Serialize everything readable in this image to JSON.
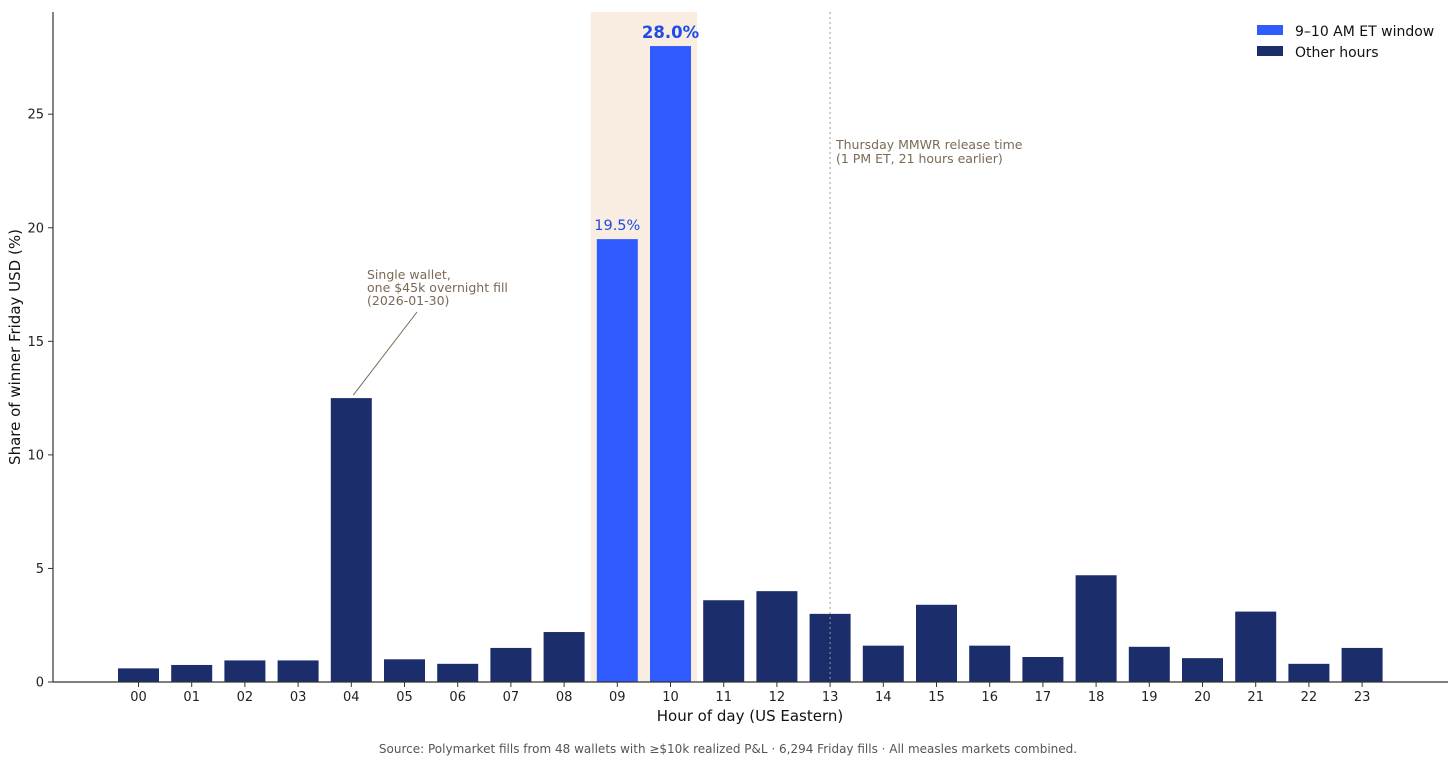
{
  "chart_data": {
    "type": "bar",
    "title": "",
    "xlabel": "Hour of day (US Eastern)",
    "ylabel": "Share of winner Friday USD (%)",
    "ylim": [
      0,
      29.5
    ],
    "yticks": [
      0,
      5,
      10,
      15,
      20,
      25
    ],
    "categories": [
      "00",
      "01",
      "02",
      "03",
      "04",
      "05",
      "06",
      "07",
      "08",
      "09",
      "10",
      "11",
      "12",
      "13",
      "14",
      "15",
      "16",
      "17",
      "18",
      "19",
      "20",
      "21",
      "22",
      "23"
    ],
    "values": [
      0.6,
      0.75,
      0.95,
      0.95,
      12.5,
      1.0,
      0.8,
      1.5,
      2.2,
      19.5,
      28.0,
      3.6,
      4.0,
      3.0,
      1.6,
      3.4,
      1.6,
      1.1,
      4.7,
      1.55,
      1.05,
      3.1,
      0.8,
      1.5
    ],
    "highlight_categories": [
      "09",
      "10"
    ],
    "highlight_labels": {
      "09": "19.5%",
      "10": "28.0%"
    },
    "legend": {
      "position": "top-right",
      "entries": [
        {
          "label": "9–10 AM ET window",
          "color": "#2f5bff"
        },
        {
          "label": "Other hours",
          "color": "#1b2d6b"
        }
      ]
    },
    "annotations": {
      "single_wallet": {
        "lines": [
          "Single wallet,",
          "one $45k overnight fill",
          "(2026-01-30)"
        ],
        "target_category": "04"
      },
      "mmwr": {
        "lines": [
          "Thursday MMWR release time",
          "(1 PM ET, 21 hours earlier)"
        ],
        "line_at_category": "13"
      }
    },
    "source": "Source: Polymarket fills from 48 wallets with ≥$10k realized P&L · 6,294 Friday fills · All measles markets combined."
  },
  "colors": {
    "highlight": "#2f5bff",
    "other": "#1b2d6b",
    "label_blue": "#1f4be6",
    "shade": "#f8ede0",
    "annotation": "#7a6a55",
    "axis": "#333333"
  }
}
